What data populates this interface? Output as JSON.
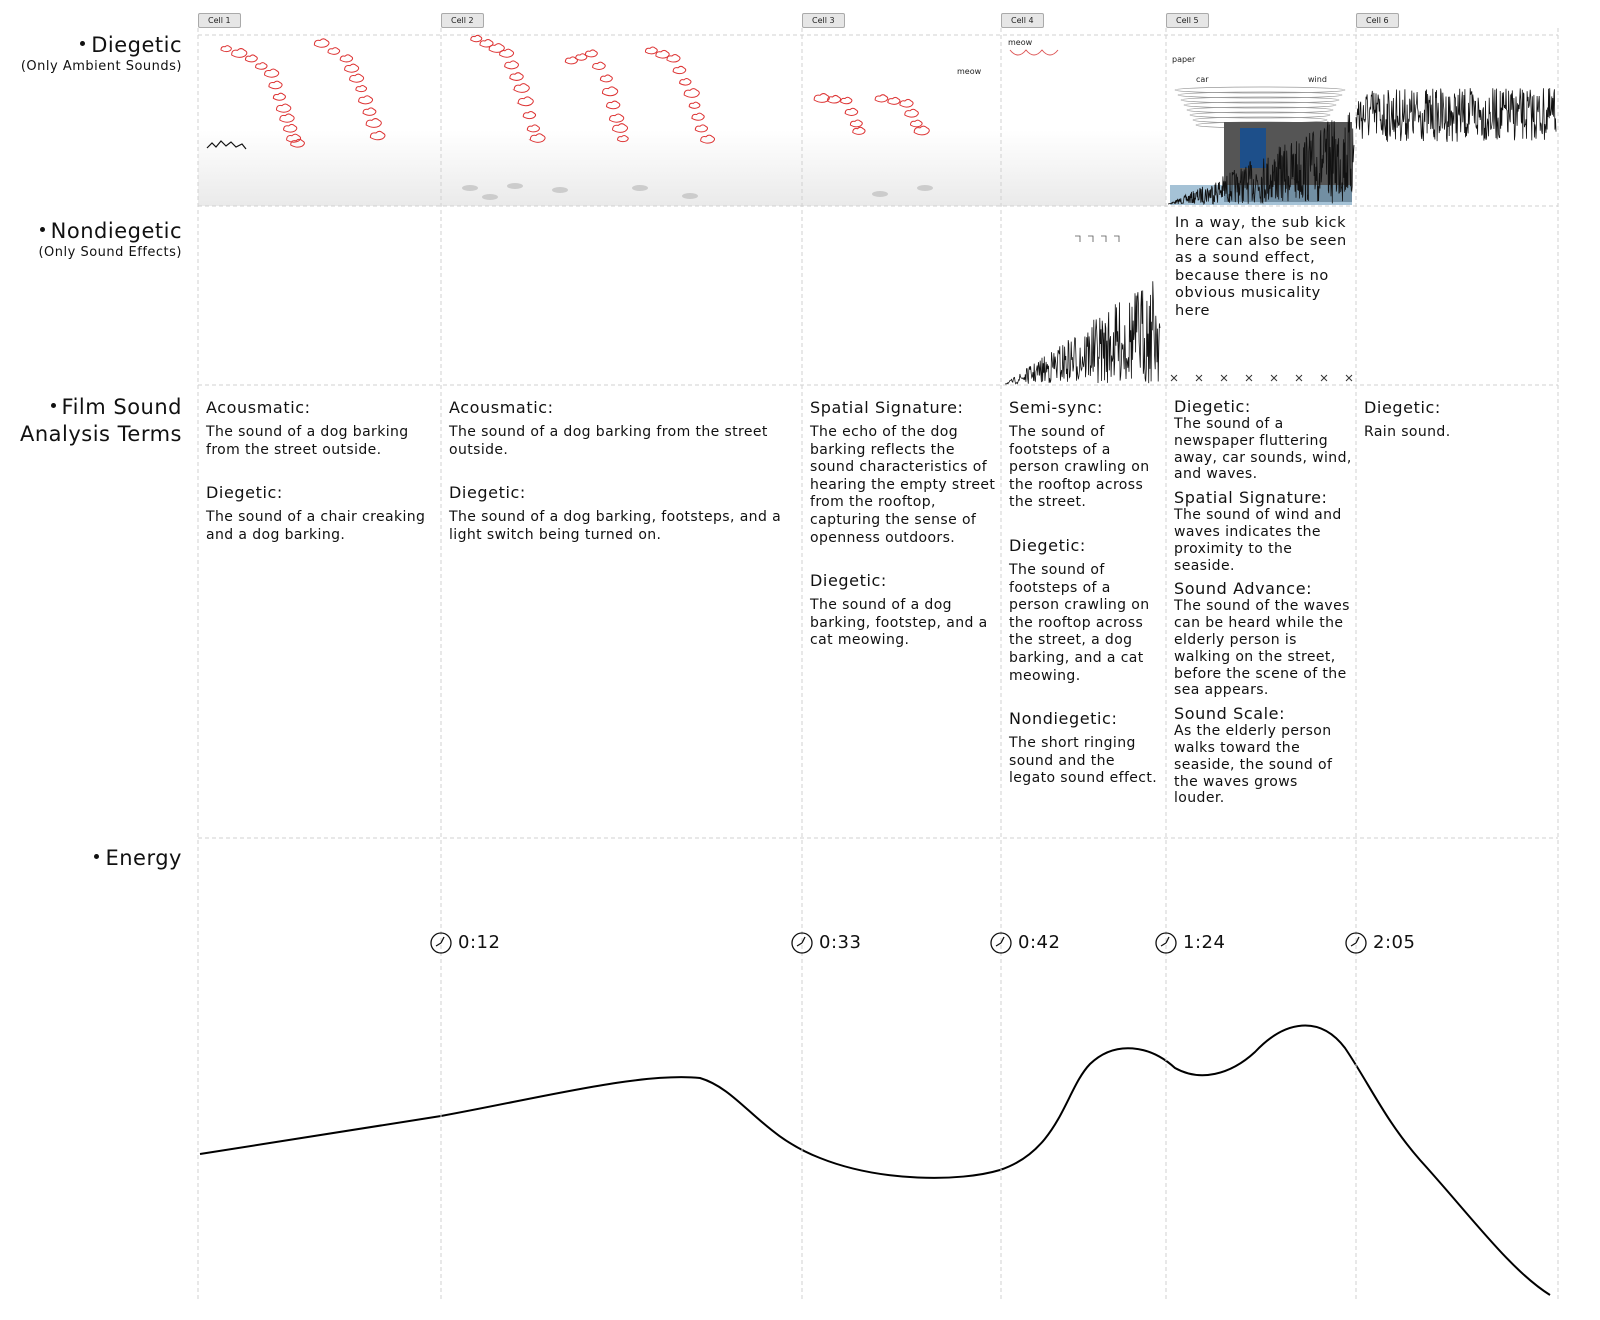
{
  "rows": [
    {
      "title": "Diegetic",
      "subtitle": "(Only Ambient Sounds)"
    },
    {
      "title": "Nondiegetic",
      "subtitle": "(Only Sound Effects)"
    },
    {
      "title": "Film Sound Analysis Terms"
    },
    {
      "title": "Energy"
    }
  ],
  "cells": [
    {
      "tag": "Cell 1",
      "terms": [
        {
          "term": "Acousmatic:",
          "text": "The sound of a dog barking from the street outside."
        },
        {
          "term": "Diegetic:",
          "text": "The sound of a chair creaking and a dog barking."
        }
      ]
    },
    {
      "tag": "Cell 2",
      "terms": [
        {
          "term": "Acousmatic:",
          "text": "The sound of a dog barking from the street outside."
        },
        {
          "term": "Diegetic:",
          "text": "The sound of a dog barking, footsteps, and a light switch being turned on."
        }
      ]
    },
    {
      "tag": "Cell 3",
      "annotations": [
        "meow"
      ],
      "terms": [
        {
          "term": "Spatial Signature:",
          "text": "The echo of the dog barking reflects the sound characteristics of hearing the empty street from the rooftop, capturing the sense of openness outdoors."
        },
        {
          "term": "Diegetic:",
          "text": "The sound of a dog barking, footstep, and a cat meowing."
        }
      ]
    },
    {
      "tag": "Cell 4",
      "annotations": [
        "meow"
      ],
      "terms": [
        {
          "term": "Semi-sync:",
          "text": "The sound of footsteps of a person crawling on the rooftop across the street."
        },
        {
          "term": "Diegetic:",
          "text": "The sound of footsteps of a person crawling on the rooftop across the street, a dog barking, and a cat meowing."
        },
        {
          "term": "Nondiegetic:",
          "text": "The short ringing sound and the legato sound effect."
        }
      ]
    },
    {
      "tag": "Cell 5",
      "annotations": [
        "paper",
        "car",
        "wind"
      ],
      "note": "In a way, the sub kick here can also be seen as a sound effect, because there is no obvious musicality here",
      "terms": [
        {
          "term": "Diegetic:",
          "text": "The sound of a newspaper fluttering away, car sounds, wind, and waves."
        },
        {
          "term": "Spatial Signature:",
          "text": "The sound of wind and waves indicates the proximity to the seaside."
        },
        {
          "term": "Sound Advance:",
          "text": "The sound of the waves can be heard while the elderly person is walking on the street, before the scene of the sea appears."
        },
        {
          "term": "Sound Scale:",
          "text": "As the elderly person walks toward the seaside, the sound of the waves grows louder."
        }
      ]
    },
    {
      "tag": "Cell 6",
      "terms": [
        {
          "term": "Diegetic:",
          "text": "Rain sound."
        }
      ]
    }
  ],
  "timestamps": [
    "0:12",
    "0:33",
    "0:42",
    "1:24",
    "2:05"
  ]
}
